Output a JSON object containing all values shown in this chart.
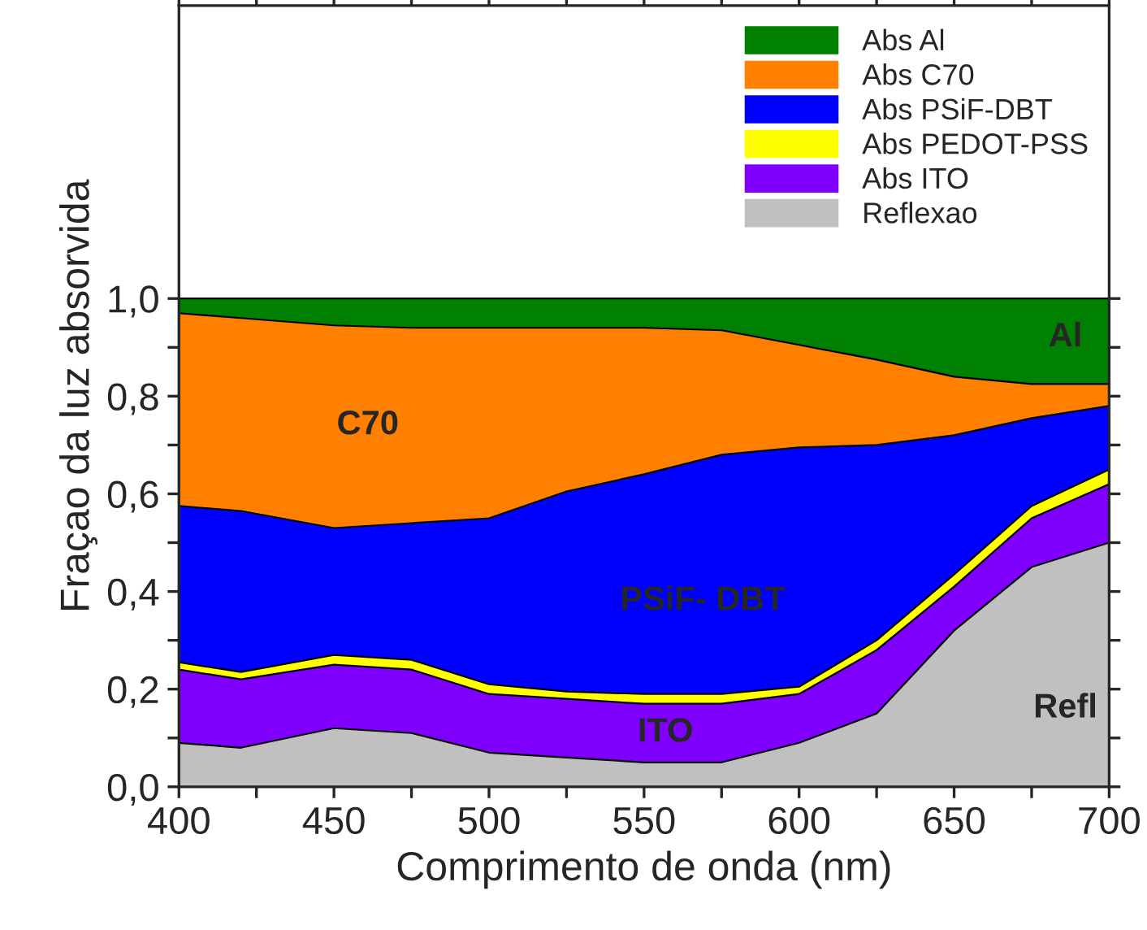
{
  "chart_data": {
    "type": "area",
    "stacked": true,
    "xlabel": "Comprimento de onda (nm)",
    "ylabel": "Fraçao da luz absorvida",
    "x": [
      400,
      420,
      450,
      475,
      500,
      525,
      550,
      575,
      600,
      625,
      650,
      675,
      700
    ],
    "series": [
      {
        "name": "Reflexao",
        "color": "#c0c0c0",
        "values": [
          0.09,
          0.08,
          0.12,
          0.11,
          0.07,
          0.06,
          0.05,
          0.05,
          0.09,
          0.15,
          0.32,
          0.45,
          0.5
        ]
      },
      {
        "name": "Abs ITO",
        "color": "#8000ff",
        "values": [
          0.15,
          0.14,
          0.13,
          0.13,
          0.12,
          0.12,
          0.12,
          0.12,
          0.1,
          0.13,
          0.09,
          0.1,
          0.12
        ]
      },
      {
        "name": "Abs PEDOT-PSS",
        "color": "#ffff00",
        "values": [
          0.015,
          0.015,
          0.02,
          0.02,
          0.02,
          0.015,
          0.02,
          0.02,
          0.015,
          0.02,
          0.025,
          0.025,
          0.03
        ]
      },
      {
        "name": "Abs PSiF-DBT",
        "color": "#0000ff",
        "values": [
          0.32,
          0.33,
          0.26,
          0.28,
          0.34,
          0.41,
          0.45,
          0.49,
          0.49,
          0.4,
          0.285,
          0.18,
          0.13
        ]
      },
      {
        "name": "Abs C70",
        "color": "#ff8000",
        "values": [
          0.395,
          0.395,
          0.415,
          0.4,
          0.39,
          0.335,
          0.3,
          0.255,
          0.21,
          0.175,
          0.12,
          0.07,
          0.045
        ]
      },
      {
        "name": "Abs Al",
        "color": "#008000",
        "values": [
          0.03,
          0.04,
          0.055,
          0.06,
          0.06,
          0.06,
          0.06,
          0.065,
          0.095,
          0.125,
          0.16,
          0.175,
          0.175
        ]
      }
    ],
    "xlim": [
      400,
      700
    ],
    "ylim": [
      0,
      1.6
    ],
    "xticks": [
      400,
      {
        "value": 425,
        "label": null
      },
      450,
      {
        "value": 475,
        "label": null
      },
      500,
      {
        "value": 525,
        "label": null
      },
      550,
      {
        "value": 575,
        "label": null
      },
      600,
      {
        "value": 625,
        "label": null
      },
      650,
      {
        "value": 675,
        "label": null
      },
      700
    ],
    "yticks": [
      {
        "value": 0,
        "label": "0,0"
      },
      {
        "value": 0.1,
        "label": null
      },
      {
        "value": 0.2,
        "label": "0,2"
      },
      {
        "value": 0.3,
        "label": null
      },
      {
        "value": 0.4,
        "label": "0,4"
      },
      {
        "value": 0.5,
        "label": null
      },
      {
        "value": 0.6,
        "label": "0,6"
      },
      {
        "value": 0.7,
        "label": null
      },
      {
        "value": 0.8,
        "label": "0,8"
      },
      {
        "value": 0.9,
        "label": null
      },
      {
        "value": 1.0,
        "label": "1,0"
      }
    ],
    "grid": false,
    "legend": "top right",
    "annotations": [
      "Al",
      "C70",
      "PSiF- DBT",
      "ITO",
      "Refl"
    ]
  }
}
